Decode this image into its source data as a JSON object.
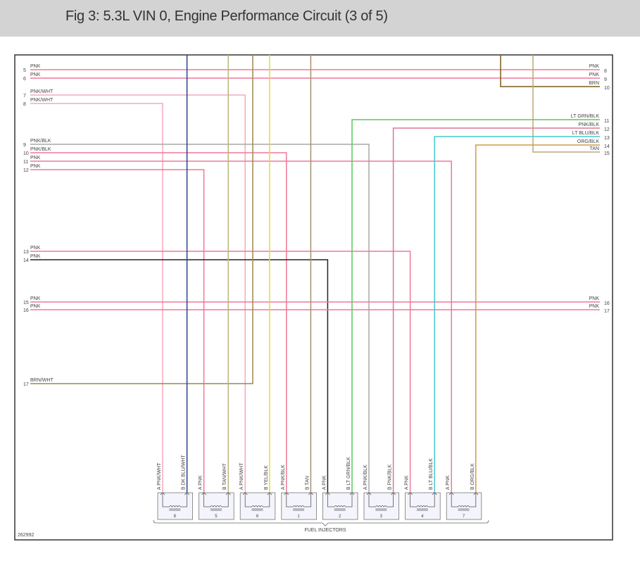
{
  "title": "Fig 3: 5.3L VIN 0, Engine Performance Circuit (3 of 5)",
  "figure_id": "262992",
  "component_label": "FUEL INJECTORS",
  "left_pins": [
    {
      "pin": "5",
      "label": "PNK"
    },
    {
      "pin": "6",
      "label": "PNK"
    },
    {
      "pin": "7",
      "label": "PNK/WHT"
    },
    {
      "pin": "8",
      "label": "PNK/WHT"
    },
    {
      "pin": "9",
      "label": "PNK/BLK"
    },
    {
      "pin": "10",
      "label": "PNK/BLK"
    },
    {
      "pin": "11",
      "label": "PNK"
    },
    {
      "pin": "12",
      "label": "PNK"
    },
    {
      "pin": "13",
      "label": "PNK"
    },
    {
      "pin": "14",
      "label": "PNK"
    },
    {
      "pin": "15",
      "label": "PNK"
    },
    {
      "pin": "16",
      "label": "PNK"
    },
    {
      "pin": "17",
      "label": "BRN/WHT"
    }
  ],
  "right_pins": [
    {
      "pin": "8",
      "label": "PNK"
    },
    {
      "pin": "9",
      "label": "PNK"
    },
    {
      "pin": "10",
      "label": "BRN"
    },
    {
      "pin": "11",
      "label": "LT GRN/BLK"
    },
    {
      "pin": "12",
      "label": "PNK/BLK"
    },
    {
      "pin": "13",
      "label": "LT BLU/BLK"
    },
    {
      "pin": "14",
      "label": "ORG/BLK"
    },
    {
      "pin": "15",
      "label": "TAN"
    },
    {
      "pin": "16",
      "label": "PNK"
    },
    {
      "pin": "17",
      "label": "PNK"
    }
  ],
  "injectors": [
    {
      "number": "8",
      "a": "PNK/WHT",
      "b": "DK BLU/WHT"
    },
    {
      "number": "5",
      "a": "PNK",
      "b": "TAN/WHT"
    },
    {
      "number": "6",
      "a": "PNK/WHT",
      "b": "YEL/BLK"
    },
    {
      "number": "1",
      "a": "PNK/BLK",
      "b": "TAN"
    },
    {
      "number": "2",
      "a": "PNK",
      "b": "LT GRN/BLK"
    },
    {
      "number": "3",
      "a": "PNK/BLK",
      "b": "PNK/BLK"
    },
    {
      "number": "4",
      "a": "PNK",
      "b": "LT BLU/BLK"
    },
    {
      "number": "7",
      "a": "PNK",
      "b": "ORG/BLK"
    }
  ],
  "wires": [
    {
      "from": "L5",
      "to": "R8",
      "color": "#f07898"
    },
    {
      "from": "L6",
      "to": "R9",
      "color": "#f07898"
    },
    {
      "from": "L7",
      "to": "I6A",
      "color": "#f5a8bc"
    },
    {
      "from": "L8",
      "to": "I8A",
      "color": "#f5a8bc"
    },
    {
      "from": "L9",
      "to": "I3A",
      "color": "#a8a8a8"
    },
    {
      "from": "L10",
      "to": "I1A",
      "color": "#f07898"
    },
    {
      "from": "L11",
      "to": "I7A",
      "color": "#f07898"
    },
    {
      "from": "L12",
      "to": "I5A",
      "color": "#f07898"
    },
    {
      "from": "L13",
      "to": "I4A",
      "color": "#f07898"
    },
    {
      "from": "L14",
      "to": "I2A",
      "color": "#222222"
    },
    {
      "from": "L15",
      "to": "R16",
      "color": "#f07898"
    },
    {
      "from": "L16",
      "to": "R17",
      "color": "#f07898"
    },
    {
      "from": "L17",
      "to": "T3",
      "color": "#9a8a4a"
    },
    {
      "from": "T1",
      "to": "I8B",
      "color": "#2a3f8f"
    },
    {
      "from": "T2",
      "to": "I5B",
      "color": "#bdb57e"
    },
    {
      "from": "T4",
      "to": "I6B",
      "color": "#e4e020"
    },
    {
      "from": "T5",
      "to": "I1B",
      "color": "#a89070"
    },
    {
      "from": "T6",
      "to": "R10",
      "color": "#7a5c1a"
    },
    {
      "from": "T7",
      "to": "R15",
      "color": "#bba878"
    },
    {
      "from": "R11",
      "to": "I2B",
      "color": "#58c858"
    },
    {
      "from": "R12",
      "to": "I3B",
      "color": "#d87890"
    },
    {
      "from": "R13",
      "to": "I4B",
      "color": "#48c8d0"
    },
    {
      "from": "R14",
      "to": "I7B",
      "color": "#d09a48"
    }
  ]
}
